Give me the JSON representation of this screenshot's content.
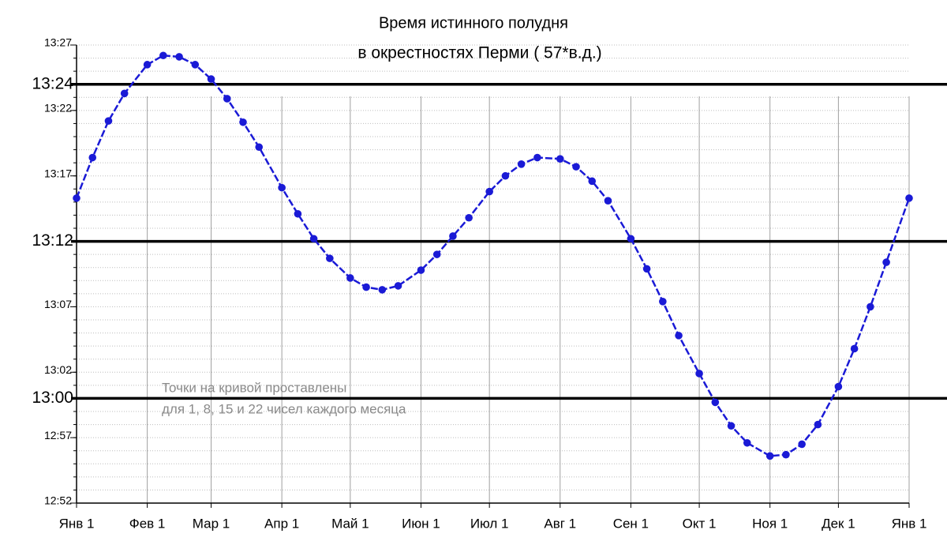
{
  "chart_data": {
    "type": "line",
    "title": "Время истинного полудня",
    "subtitle": "в окрестностях Перми ( 57*в.д.)",
    "annotation": [
      "Точки на кривой проставлены",
      "для 1, 8, 15 и 22 чисел каждого месяца"
    ],
    "color": "#1a1ad6",
    "grid": true,
    "minor_grid": true,
    "x": [
      0,
      7,
      14,
      21,
      31,
      38,
      45,
      52,
      59,
      66,
      73,
      80,
      90,
      97,
      104,
      111,
      120,
      127,
      134,
      141,
      151,
      158,
      165,
      172,
      181,
      188,
      195,
      202,
      212,
      219,
      226,
      233,
      243,
      250,
      257,
      264,
      273,
      280,
      287,
      294,
      304,
      311,
      318,
      325,
      334,
      341,
      348,
      355,
      365
    ],
    "values": [
      75.3,
      78.4,
      81.2,
      83.3,
      85.5,
      86.2,
      86.1,
      85.5,
      84.4,
      82.9,
      81.1,
      79.2,
      76.1,
      74.1,
      72.2,
      70.7,
      69.2,
      68.5,
      68.3,
      68.6,
      69.8,
      71.0,
      72.4,
      73.8,
      75.8,
      77.0,
      77.9,
      78.4,
      78.3,
      77.7,
      76.6,
      75.1,
      72.2,
      69.9,
      67.4,
      64.8,
      61.9,
      59.7,
      57.9,
      56.6,
      55.6,
      55.7,
      56.5,
      58.0,
      60.9,
      63.8,
      67.0,
      70.4,
      75.3
    ],
    "xlim": [
      0,
      365
    ],
    "xticks": [
      {
        "value": 0,
        "label": "Янв 1"
      },
      {
        "value": 31,
        "label": "Фев 1"
      },
      {
        "value": 59,
        "label": "Мар 1"
      },
      {
        "value": 90,
        "label": "Апр 1"
      },
      {
        "value": 120,
        "label": "Май 1"
      },
      {
        "value": 151,
        "label": "Июн 1"
      },
      {
        "value": 181,
        "label": "Июл 1"
      },
      {
        "value": 212,
        "label": "Авг 1"
      },
      {
        "value": 243,
        "label": "Сен 1"
      },
      {
        "value": 273,
        "label": "Окт 1"
      },
      {
        "value": 304,
        "label": "Ноя 1"
      },
      {
        "value": 334,
        "label": "Дек 1"
      },
      {
        "value": 365,
        "label": "Янв 1"
      }
    ],
    "ylim": [
      52,
      87
    ],
    "yticks": [
      {
        "value": 52,
        "label": "12:52"
      },
      {
        "value": 57,
        "label": "12:57"
      },
      {
        "value": 62,
        "label": "13:02"
      },
      {
        "value": 67,
        "label": "13:07"
      },
      {
        "value": 77,
        "label": "13:17"
      },
      {
        "value": 82,
        "label": "13:22"
      },
      {
        "value": 87,
        "label": "13:27"
      }
    ],
    "reference_lines": [
      {
        "value": 60,
        "label": "13:00"
      },
      {
        "value": 72,
        "label": "13:12"
      },
      {
        "value": 84,
        "label": "13:24"
      }
    ]
  }
}
